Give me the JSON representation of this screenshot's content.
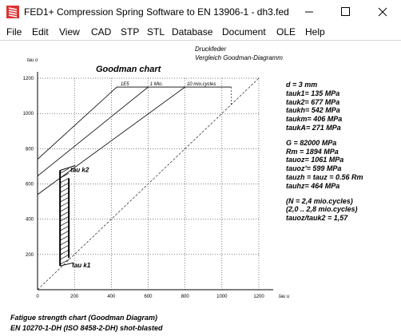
{
  "window": {
    "title": "FED1+  Compression Spring Software to EN 13906-1  -  dh3.fed",
    "icon": "spring-app-icon",
    "buttons": [
      "minimize",
      "maximize",
      "close"
    ]
  },
  "menu": [
    "File",
    "Edit",
    "View",
    "CAD",
    "STP",
    "STL",
    "Database",
    "Document",
    "OLE",
    "Help"
  ],
  "header": {
    "line1": "Druckfeder",
    "line2": "Vergleich Goodman-Diagramm"
  },
  "chart_data": {
    "type": "line",
    "title": "Goodman chart",
    "xlabel": "tau u",
    "ylabel": "tau o",
    "xlim": [
      0,
      1200
    ],
    "ylim": [
      0,
      1200
    ],
    "x_ticks": [
      0,
      200,
      400,
      600,
      800,
      1000,
      1200
    ],
    "y_ticks": [
      200,
      400,
      600,
      800,
      1000,
      1200
    ],
    "y_tick_labels": [
      "200",
      "400",
      "600",
      "800",
      "1000",
      "1200"
    ],
    "x_tick_labels": [
      "0",
      "200",
      "400",
      "600",
      "800",
      "1000",
      "1200"
    ],
    "grid": "dotted",
    "series": [
      {
        "name": "1E5",
        "points": [
          [
            0,
            740
          ],
          [
            430,
            1150
          ],
          [
            600,
            1150
          ]
        ],
        "label_x": 450
      },
      {
        "name": "1 Mio.",
        "points": [
          [
            0,
            645
          ],
          [
            600,
            1150
          ],
          [
            800,
            1150
          ]
        ],
        "label_x": 610
      },
      {
        "name": "10 mio.cycles",
        "points": [
          [
            0,
            540
          ],
          [
            800,
            1150
          ],
          [
            1050,
            1150
          ]
        ],
        "label_x": 810
      }
    ],
    "diagonal": [
      [
        0,
        0
      ],
      [
        1200,
        1200
      ]
    ],
    "limit_dashed": [
      [
        1050,
        1150
      ],
      [
        1050,
        1050
      ]
    ],
    "stress_band": {
      "tauk1": 135,
      "tauk2": 677,
      "label_low": "tau k1",
      "label_high": "tau k2"
    }
  },
  "results": [
    "d  = 3 mm",
    "tauk1=  135 MPa",
    "tauk2=  677 MPa",
    "taukh=  542 MPa",
    "taukm=  406 MPa",
    "taukA=  271 MPa",
    "",
    "G  =  82000 MPa",
    "Rm  =  1894 MPa",
    "tauoz= 1061 MPa",
    "tauoz'=  599 MPa",
    "tauzh = tauz = 0.56 Rm",
    "tauhz=  464 MPa",
    "",
    "(N = 2,4 mio.cycles)",
    "(2,0 .. 2,8 mio.cycles)",
    "tauoz/tauk2 = 1,57"
  ],
  "footer": {
    "line1": "Fatigue strength chart (Goodman Diagram)",
    "line2": "EN 10270-1-DH (ISO 8458-2-DH) shot-blasted"
  },
  "colors": {
    "text": "#000000",
    "grid": "#000000",
    "background": "#ffffff",
    "icon_red": "#d33",
    "icon_white": "#ffffff"
  }
}
